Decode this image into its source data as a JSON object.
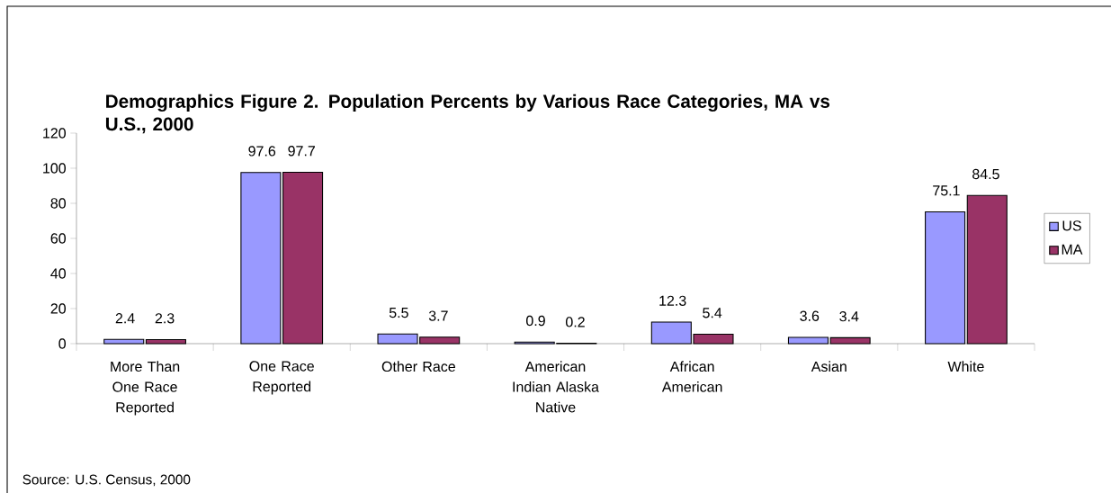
{
  "chart_data": {
    "type": "bar",
    "title": "Demographics Figure 2.  Population Percents by Various Race Categories, MA vs U.S., 2000",
    "categories": [
      "More Than One Race Reported",
      "One Race Reported",
      "Other Race",
      "American Indian Alaska Native",
      "African American",
      "Asian",
      "White"
    ],
    "series": [
      {
        "name": "US",
        "color": "#9999ff",
        "values": [
          2.4,
          97.6,
          5.5,
          0.9,
          12.3,
          3.6,
          75.1
        ]
      },
      {
        "name": "MA",
        "color": "#993366",
        "values": [
          2.3,
          97.7,
          3.7,
          0.2,
          5.4,
          3.4,
          84.5
        ]
      }
    ],
    "ylim": [
      0,
      120
    ],
    "yticks": [
      0,
      20,
      40,
      60,
      80,
      100,
      120
    ],
    "data_labels": true,
    "legend": "right",
    "annotations": [
      "Source: U.S. Census, 2000"
    ]
  }
}
